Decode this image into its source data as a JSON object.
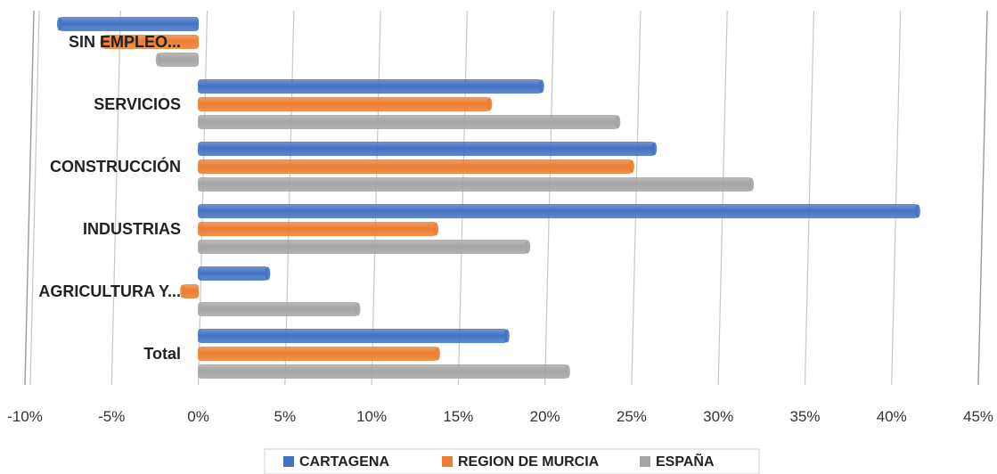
{
  "chart_data": {
    "type": "bar",
    "orientation": "horizontal",
    "title": "",
    "xlabel": "",
    "ylabel": "",
    "xlim": [
      -10,
      45
    ],
    "x_ticks": [
      -10,
      -5,
      0,
      5,
      10,
      15,
      20,
      25,
      30,
      35,
      40,
      45
    ],
    "x_tick_labels": [
      "-10%",
      "-5%",
      "0%",
      "5%",
      "10%",
      "15%",
      "20%",
      "25%",
      "30%",
      "35%",
      "40%",
      "45%"
    ],
    "categories": [
      "Total",
      "AGRICULTURA Y...",
      "INDUSTRIAS",
      "CONSTRUCCIÓN",
      "SERVICIOS",
      "SIN EMPLEO..."
    ],
    "series": [
      {
        "name": "CARTAGENA",
        "color": "#4472C4",
        "values": [
          17.8,
          4.0,
          41.5,
          26.3,
          19.8,
          -8.0
        ]
      },
      {
        "name": "REGION DE MURCIA",
        "color": "#ED7D31",
        "values": [
          13.8,
          -0.9,
          13.7,
          25.0,
          16.8,
          -5.5
        ]
      },
      {
        "name": "ESPAÑA",
        "color": "#A5A5A5",
        "values": [
          21.3,
          9.2,
          19.0,
          31.9,
          24.2,
          -2.3
        ]
      }
    ],
    "grid": true,
    "legend_position": "bottom"
  }
}
